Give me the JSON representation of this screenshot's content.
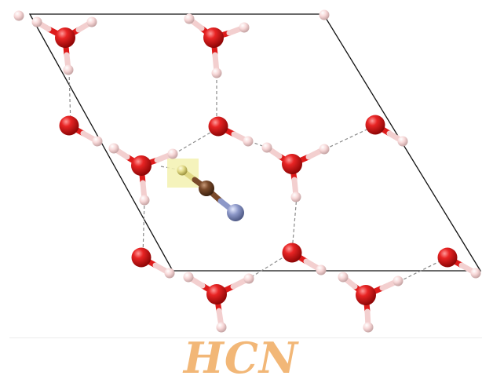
{
  "caption": {
    "text": "HCN",
    "color": "#f2b777"
  },
  "legend_colors": {
    "oxygen": "#dd1a1a",
    "hydrogen": "#ffd9d9",
    "carbon": "#7a4a2a",
    "nitrogen": "#8d98c8",
    "adsorbate_hydrogen": "#e8e294",
    "highlight": "#f3f1b0",
    "cell_edge": "#111111",
    "hydrogen_bond": "#8a8a8a"
  }
}
